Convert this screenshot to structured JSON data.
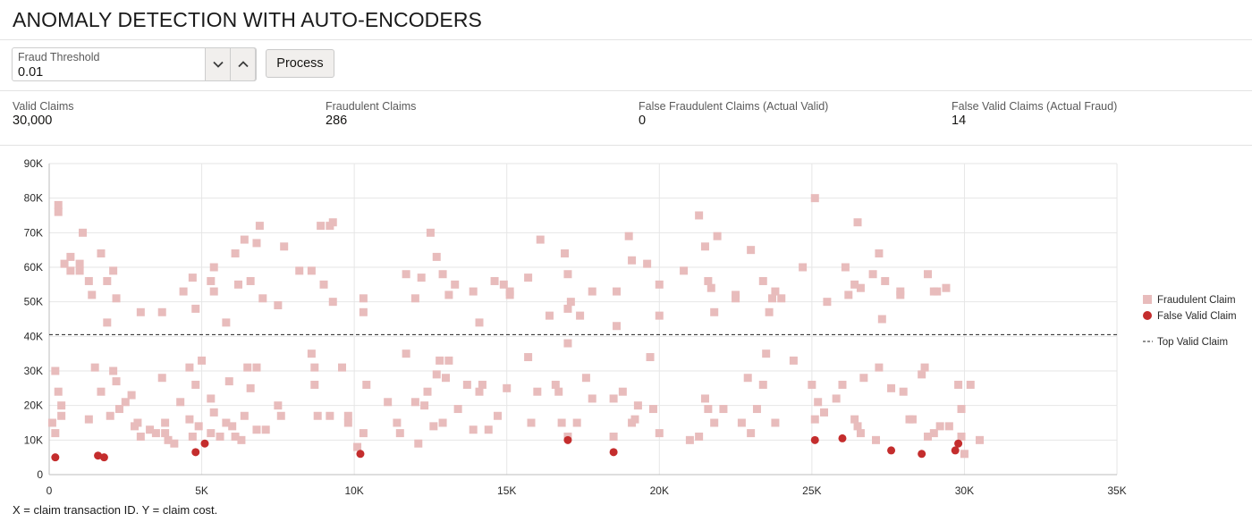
{
  "page": {
    "title": "ANOMALY DETECTION WITH AUTO-ENCODERS"
  },
  "controls": {
    "threshold_label": "Fraud Threshold",
    "threshold_value": "0.01",
    "decrement_icon": "chevron-down-icon",
    "increment_icon": "chevron-up-icon",
    "process_label": "Process"
  },
  "metrics": [
    {
      "label": "Valid Claims",
      "value": "30,000"
    },
    {
      "label": "Fraudulent Claims",
      "value": "286"
    },
    {
      "label": "False Fraudulent Claims (Actual Valid)",
      "value": "0"
    },
    {
      "label": "False Valid Claims (Actual Fraud)",
      "value": "14"
    }
  ],
  "caption": "X = claim transaction ID. Y = claim cost.",
  "colors": {
    "fraudulent": "#e8bcbc",
    "false_valid": "#c42d2d",
    "grid": "#e6e6e6",
    "reference": "#222222"
  },
  "chart_data": {
    "type": "scatter",
    "x_range": [
      0,
      35000
    ],
    "y_range": [
      0,
      90000
    ],
    "x_ticks": [
      0,
      5000,
      10000,
      15000,
      20000,
      25000,
      30000,
      35000
    ],
    "x_tick_labels": [
      "0",
      "5K",
      "10K",
      "15K",
      "20K",
      "25K",
      "30K",
      "35K"
    ],
    "y_ticks": [
      0,
      10000,
      20000,
      30000,
      40000,
      50000,
      60000,
      70000,
      80000,
      90000
    ],
    "y_tick_labels": [
      "0",
      "10K",
      "20K",
      "30K",
      "40K",
      "50K",
      "60K",
      "70K",
      "80K",
      "90K"
    ],
    "grid": true,
    "legend_position": "right",
    "reference_line": {
      "name": "Top Valid Claim",
      "y": 40500
    },
    "series": [
      {
        "name": "Fraudulent Claim",
        "marker": "square",
        "points": [
          [
            300,
            78000
          ],
          [
            300,
            76000
          ],
          [
            500,
            61000
          ],
          [
            700,
            63000
          ],
          [
            700,
            59000
          ],
          [
            1000,
            61000
          ],
          [
            1000,
            59000
          ],
          [
            1100,
            70000
          ],
          [
            1300,
            56000
          ],
          [
            1400,
            52000
          ],
          [
            1700,
            64000
          ],
          [
            1900,
            56000
          ],
          [
            1900,
            44000
          ],
          [
            2100,
            59000
          ],
          [
            2200,
            51000
          ],
          [
            3000,
            47000
          ],
          [
            3700,
            47000
          ],
          [
            4400,
            53000
          ],
          [
            4700,
            57000
          ],
          [
            4800,
            48000
          ],
          [
            5300,
            56000
          ],
          [
            5400,
            60000
          ],
          [
            5400,
            53000
          ],
          [
            5800,
            44000
          ],
          [
            6100,
            64000
          ],
          [
            6200,
            55000
          ],
          [
            6400,
            68000
          ],
          [
            6600,
            56000
          ],
          [
            6800,
            67000
          ],
          [
            6900,
            72000
          ],
          [
            7000,
            51000
          ],
          [
            7500,
            49000
          ],
          [
            7700,
            66000
          ],
          [
            8200,
            59000
          ],
          [
            8600,
            59000
          ],
          [
            8900,
            72000
          ],
          [
            9000,
            55000
          ],
          [
            9200,
            72000
          ],
          [
            9300,
            73000
          ],
          [
            9300,
            50000
          ],
          [
            10300,
            51000
          ],
          [
            10300,
            47000
          ],
          [
            11700,
            58000
          ],
          [
            12000,
            51000
          ],
          [
            12200,
            57000
          ],
          [
            12500,
            70000
          ],
          [
            12700,
            63000
          ],
          [
            12900,
            58000
          ],
          [
            13100,
            52000
          ],
          [
            13300,
            55000
          ],
          [
            13900,
            53000
          ],
          [
            14100,
            44000
          ],
          [
            14600,
            56000
          ],
          [
            14900,
            55000
          ],
          [
            15100,
            53000
          ],
          [
            15100,
            52000
          ],
          [
            15700,
            57000
          ],
          [
            16100,
            68000
          ],
          [
            16400,
            46000
          ],
          [
            16900,
            64000
          ],
          [
            17000,
            58000
          ],
          [
            17000,
            48000
          ],
          [
            17100,
            50000
          ],
          [
            17400,
            46000
          ],
          [
            17800,
            53000
          ],
          [
            18600,
            43000
          ],
          [
            18600,
            53000
          ],
          [
            19000,
            69000
          ],
          [
            19100,
            62000
          ],
          [
            19600,
            61000
          ],
          [
            20000,
            55000
          ],
          [
            20000,
            46000
          ],
          [
            20800,
            59000
          ],
          [
            21300,
            75000
          ],
          [
            21500,
            66000
          ],
          [
            21600,
            56000
          ],
          [
            21700,
            54000
          ],
          [
            21800,
            47000
          ],
          [
            21900,
            69000
          ],
          [
            22500,
            51000
          ],
          [
            22500,
            52000
          ],
          [
            23000,
            65000
          ],
          [
            23400,
            56000
          ],
          [
            23600,
            47000
          ],
          [
            23700,
            51000
          ],
          [
            23800,
            53000
          ],
          [
            24000,
            51000
          ],
          [
            24700,
            60000
          ],
          [
            25100,
            80000
          ],
          [
            25500,
            50000
          ],
          [
            26100,
            60000
          ],
          [
            26200,
            52000
          ],
          [
            26400,
            55000
          ],
          [
            26500,
            73000
          ],
          [
            26600,
            54000
          ],
          [
            27000,
            58000
          ],
          [
            27200,
            64000
          ],
          [
            27300,
            45000
          ],
          [
            27400,
            56000
          ],
          [
            27900,
            53000
          ],
          [
            27900,
            52000
          ],
          [
            28800,
            58000
          ],
          [
            29000,
            53000
          ],
          [
            29100,
            53000
          ],
          [
            29400,
            54000
          ],
          [
            100,
            15000
          ],
          [
            200,
            12000
          ],
          [
            200,
            30000
          ],
          [
            300,
            24000
          ],
          [
            400,
            20000
          ],
          [
            400,
            17000
          ],
          [
            1300,
            16000
          ],
          [
            1500,
            31000
          ],
          [
            1700,
            24000
          ],
          [
            2000,
            17000
          ],
          [
            2100,
            30000
          ],
          [
            2200,
            27000
          ],
          [
            2300,
            19000
          ],
          [
            2500,
            21000
          ],
          [
            2700,
            23000
          ],
          [
            2800,
            14000
          ],
          [
            2900,
            15000
          ],
          [
            3000,
            11000
          ],
          [
            3300,
            13000
          ],
          [
            3500,
            12000
          ],
          [
            3700,
            28000
          ],
          [
            3800,
            15000
          ],
          [
            3800,
            12000
          ],
          [
            3900,
            10000
          ],
          [
            4100,
            9000
          ],
          [
            4300,
            21000
          ],
          [
            4600,
            31000
          ],
          [
            4600,
            16000
          ],
          [
            4700,
            11000
          ],
          [
            4800,
            26000
          ],
          [
            4900,
            14000
          ],
          [
            5000,
            33000
          ],
          [
            5300,
            12000
          ],
          [
            5300,
            22000
          ],
          [
            5400,
            18000
          ],
          [
            5600,
            11000
          ],
          [
            5800,
            15000
          ],
          [
            5900,
            27000
          ],
          [
            6000,
            14000
          ],
          [
            6100,
            11000
          ],
          [
            6300,
            10000
          ],
          [
            6400,
            17000
          ],
          [
            6500,
            31000
          ],
          [
            6600,
            25000
          ],
          [
            6800,
            31000
          ],
          [
            6800,
            13000
          ],
          [
            7100,
            13000
          ],
          [
            7500,
            20000
          ],
          [
            7600,
            17000
          ],
          [
            8600,
            35000
          ],
          [
            8700,
            31000
          ],
          [
            8700,
            26000
          ],
          [
            8800,
            17000
          ],
          [
            9200,
            17000
          ],
          [
            9600,
            31000
          ],
          [
            9800,
            17000
          ],
          [
            9800,
            15000
          ],
          [
            10100,
            8000
          ],
          [
            10300,
            12000
          ],
          [
            10400,
            26000
          ],
          [
            11100,
            21000
          ],
          [
            11400,
            15000
          ],
          [
            11500,
            12000
          ],
          [
            11700,
            35000
          ],
          [
            12000,
            21000
          ],
          [
            12100,
            9000
          ],
          [
            12300,
            20000
          ],
          [
            12400,
            24000
          ],
          [
            12600,
            14000
          ],
          [
            12700,
            29000
          ],
          [
            12800,
            33000
          ],
          [
            12900,
            15000
          ],
          [
            13000,
            28000
          ],
          [
            13100,
            33000
          ],
          [
            13400,
            19000
          ],
          [
            13700,
            26000
          ],
          [
            13900,
            13000
          ],
          [
            14100,
            24000
          ],
          [
            14200,
            26000
          ],
          [
            14400,
            13000
          ],
          [
            14700,
            17000
          ],
          [
            15000,
            25000
          ],
          [
            15700,
            34000
          ],
          [
            15800,
            15000
          ],
          [
            16000,
            24000
          ],
          [
            16600,
            26000
          ],
          [
            16700,
            24000
          ],
          [
            16800,
            15000
          ],
          [
            17000,
            11000
          ],
          [
            17000,
            38000
          ],
          [
            17300,
            15000
          ],
          [
            17600,
            28000
          ],
          [
            17800,
            22000
          ],
          [
            18500,
            22000
          ],
          [
            18500,
            11000
          ],
          [
            18800,
            24000
          ],
          [
            19100,
            15000
          ],
          [
            19200,
            16000
          ],
          [
            19300,
            20000
          ],
          [
            19700,
            34000
          ],
          [
            19800,
            19000
          ],
          [
            20000,
            12000
          ],
          [
            21000,
            10000
          ],
          [
            21300,
            11000
          ],
          [
            21500,
            22000
          ],
          [
            21600,
            19000
          ],
          [
            21800,
            15000
          ],
          [
            22100,
            19000
          ],
          [
            22700,
            15000
          ],
          [
            22900,
            28000
          ],
          [
            23000,
            12000
          ],
          [
            23200,
            19000
          ],
          [
            23400,
            26000
          ],
          [
            23500,
            35000
          ],
          [
            23800,
            15000
          ],
          [
            24400,
            33000
          ],
          [
            25000,
            26000
          ],
          [
            25100,
            16000
          ],
          [
            25200,
            21000
          ],
          [
            25400,
            18000
          ],
          [
            25800,
            22000
          ],
          [
            26000,
            26000
          ],
          [
            26400,
            16000
          ],
          [
            26500,
            14000
          ],
          [
            26600,
            12000
          ],
          [
            26700,
            28000
          ],
          [
            27100,
            10000
          ],
          [
            27200,
            31000
          ],
          [
            27600,
            25000
          ],
          [
            28000,
            24000
          ],
          [
            28200,
            16000
          ],
          [
            28300,
            16000
          ],
          [
            28600,
            29000
          ],
          [
            28700,
            31000
          ],
          [
            28800,
            11000
          ],
          [
            29000,
            12000
          ],
          [
            29200,
            14000
          ],
          [
            29500,
            14000
          ],
          [
            29800,
            26000
          ],
          [
            29900,
            19000
          ],
          [
            29900,
            11000
          ],
          [
            30000,
            6000
          ],
          [
            30200,
            26000
          ],
          [
            30500,
            10000
          ]
        ]
      },
      {
        "name": "False Valid Claim",
        "marker": "circle",
        "points": [
          [
            200,
            5000
          ],
          [
            1600,
            5500
          ],
          [
            1800,
            5000
          ],
          [
            4800,
            6500
          ],
          [
            5100,
            9000
          ],
          [
            10200,
            6000
          ],
          [
            17000,
            10000
          ],
          [
            18500,
            6500
          ],
          [
            25100,
            10000
          ],
          [
            26000,
            10500
          ],
          [
            27600,
            7000
          ],
          [
            28600,
            6000
          ],
          [
            29700,
            7000
          ],
          [
            29800,
            9000
          ]
        ]
      }
    ]
  }
}
